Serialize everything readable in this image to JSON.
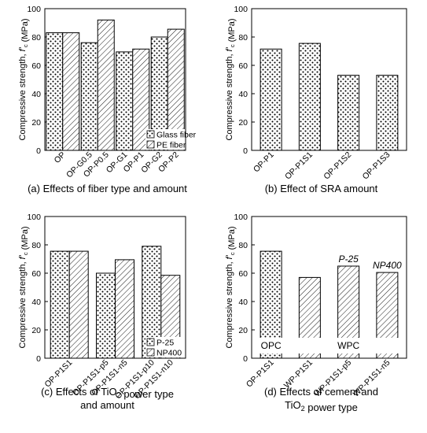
{
  "chart_data": [
    {
      "type": "bar",
      "panel": "a",
      "caption": "(a) Effects of fiber type and amount",
      "ylabel": "Compressive strength, f'c (MPa)",
      "ylim": [
        0,
        100
      ],
      "yticks": [
        0,
        20,
        40,
        60,
        80,
        100
      ],
      "categories": [
        "OP",
        "OP-G0.5",
        "OP-P0.5",
        "OP-G1",
        "OP-P1",
        "OP-G2",
        "OP-P2"
      ],
      "legend": {
        "position": "bottom-right",
        "entries": [
          "Glass fiber",
          "PE fiber"
        ]
      },
      "bars": [
        {
          "category": "OP",
          "value": 83,
          "pattern": "dots"
        },
        {
          "category": "OP",
          "value": 83,
          "pattern": "hatch"
        },
        {
          "category": "OP-G0.5",
          "value": 76,
          "pattern": "dots"
        },
        {
          "category": "OP-P0.5",
          "value": 92,
          "pattern": "hatch"
        },
        {
          "category": "OP-G1",
          "value": 69.5,
          "pattern": "dots"
        },
        {
          "category": "OP-P1",
          "value": 71.5,
          "pattern": "hatch"
        },
        {
          "category": "OP-G2",
          "value": 80,
          "pattern": "dots"
        },
        {
          "category": "OP-P2",
          "value": 85.5,
          "pattern": "hatch"
        }
      ]
    },
    {
      "type": "bar",
      "panel": "b",
      "caption": "(b) Effect of SRA amount",
      "ylabel": "Compressive strength, f'c (MPa)",
      "ylim": [
        0,
        100
      ],
      "yticks": [
        0,
        20,
        40,
        60,
        80,
        100
      ],
      "categories": [
        "OP-P1",
        "OP-P1S1",
        "OP-P1S2",
        "OP-P1S3"
      ],
      "bars": [
        {
          "category": "OP-P1",
          "value": 71.5,
          "pattern": "dots"
        },
        {
          "category": "OP-P1S1",
          "value": 75.5,
          "pattern": "dots"
        },
        {
          "category": "OP-P1S2",
          "value": 53,
          "pattern": "dots"
        },
        {
          "category": "OP-P1S3",
          "value": 53,
          "pattern": "dots"
        }
      ]
    },
    {
      "type": "bar",
      "panel": "c",
      "caption": [
        "(c) Effects of TiO2 power type",
        "and amount"
      ],
      "ylabel": "Compressive strength, f'c (MPa)",
      "ylim": [
        0,
        100
      ],
      "yticks": [
        0,
        20,
        40,
        60,
        80,
        100
      ],
      "categories": [
        "OP-P1S1",
        "OP-P1S1-p5",
        "OP-P1S1-n5",
        "OP-P1S1-p10",
        "OP-P1S1-n10"
      ],
      "legend": {
        "position": "bottom-right",
        "entries": [
          "P-25",
          "NP400"
        ]
      },
      "bars": [
        {
          "category": "OP-P1S1",
          "value": 75.5,
          "pattern": "dots"
        },
        {
          "category": "OP-P1S1",
          "value": 75.5,
          "pattern": "hatch"
        },
        {
          "category": "OP-P1S1-p5",
          "value": 60,
          "pattern": "dots"
        },
        {
          "category": "OP-P1S1-n5",
          "value": 69.5,
          "pattern": "hatch"
        },
        {
          "category": "OP-P1S1-p10",
          "value": 79,
          "pattern": "dots"
        },
        {
          "category": "OP-P1S1-n10",
          "value": 58.5,
          "pattern": "hatch"
        }
      ]
    },
    {
      "type": "bar",
      "panel": "d",
      "caption": [
        "(d) Effects of cement and",
        "TiO2 power type"
      ],
      "ylabel": "Compressive strength, f'c (MPa)",
      "ylim": [
        0,
        100
      ],
      "yticks": [
        0,
        20,
        40,
        60,
        80,
        100
      ],
      "categories": [
        "OP-P1S1",
        "WP-P1S1",
        "WP-P1S1-p5",
        "WP-P1S1-n5"
      ],
      "annotations": [
        "OPC",
        "WPC",
        "P-25",
        "NP400"
      ],
      "bars": [
        {
          "category": "OP-P1S1",
          "value": 75.5,
          "pattern": "dots"
        },
        {
          "category": "WP-P1S1",
          "value": 57,
          "pattern": "hatch"
        },
        {
          "category": "WP-P1S1-p5",
          "value": 65,
          "pattern": "hatch"
        },
        {
          "category": "WP-P1S1-n5",
          "value": 60.5,
          "pattern": "hatch"
        }
      ]
    }
  ]
}
